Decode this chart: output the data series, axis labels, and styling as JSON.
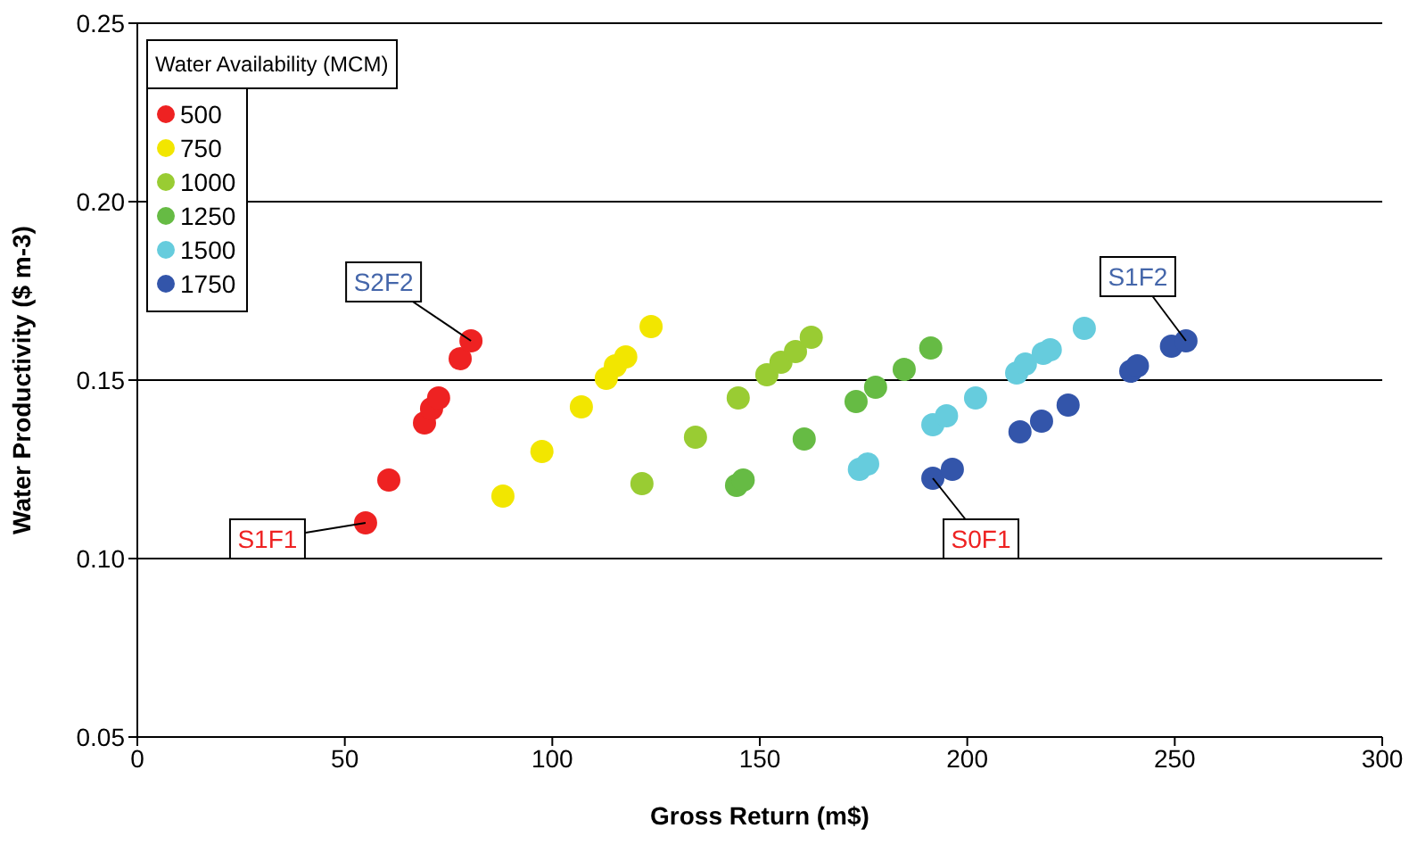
{
  "chart_data": {
    "type": "scatter",
    "xlabel": "Gross Return (m$)",
    "ylabel": "Water Productivity ($ m-3)",
    "legend_title": "Water Availability (MCM)",
    "legend": "top left",
    "grid": "y",
    "marker": "circle",
    "xlim": [
      0,
      300
    ],
    "xticks": [
      0,
      50,
      100,
      150,
      200,
      250,
      300
    ],
    "ylim": [
      0.05,
      0.25
    ],
    "yticks": [
      {
        "value": 0.05,
        "label": "0.05"
      },
      {
        "value": 0.1,
        "label": "0.10"
      },
      {
        "value": 0.15,
        "label": "0.15"
      },
      {
        "value": 0.2,
        "label": "0.20"
      },
      {
        "value": 0.25,
        "label": "0.25"
      }
    ],
    "series": [
      {
        "name": "500",
        "color": "#ee2222",
        "x": [
          55,
          60.6,
          69.2,
          70.9,
          72.6,
          77.8,
          80.4
        ],
        "values": [
          0.11,
          0.122,
          0.138,
          0.142,
          0.145,
          0.156,
          0.161
        ]
      },
      {
        "name": "750",
        "color": "#f2e600",
        "x": [
          88.1,
          97.5,
          107,
          113,
          115.2,
          117.7,
          123.8
        ],
        "values": [
          0.1175,
          0.13,
          0.1425,
          0.1505,
          0.154,
          0.1565,
          0.165
        ]
      },
      {
        "name": "1000",
        "color": "#99cc33",
        "x": [
          121.6,
          134.5,
          144.8,
          151.7,
          155.1,
          158.6,
          162.4
        ],
        "values": [
          0.121,
          0.134,
          0.145,
          0.1515,
          0.155,
          0.158,
          0.162
        ]
      },
      {
        "name": "1250",
        "color": "#66bb44",
        "x": [
          144.4,
          146,
          160.7,
          173.2,
          177.9,
          184.8,
          191.2
        ],
        "values": [
          0.1205,
          0.122,
          0.1335,
          0.144,
          0.148,
          0.153,
          0.159
        ]
      },
      {
        "name": "1500",
        "color": "#66ccdd",
        "x": [
          174,
          176,
          191.7,
          195,
          202,
          211.9,
          214,
          218.3,
          220,
          228.2
        ],
        "values": [
          0.125,
          0.1265,
          0.1375,
          0.14,
          0.145,
          0.152,
          0.1545,
          0.1575,
          0.1585,
          0.1645
        ]
      },
      {
        "name": "1750",
        "color": "#3355aa",
        "x": [
          191.7,
          196.4,
          212.7,
          217.9,
          224.3,
          239.4,
          241,
          249.2,
          252.7
        ],
        "values": [
          0.1225,
          0.125,
          0.1355,
          0.1385,
          0.143,
          0.1525,
          0.154,
          0.1595,
          0.161
        ]
      }
    ],
    "annotations": [
      {
        "text": "S2F2",
        "x": 80.4,
        "y": 0.161
      },
      {
        "text": "S1F1",
        "x": 55,
        "y": 0.11
      },
      {
        "text": "S0F1",
        "x": 191.7,
        "y": 0.1225
      },
      {
        "text": "S1F2",
        "x": 252.7,
        "y": 0.161
      }
    ]
  }
}
